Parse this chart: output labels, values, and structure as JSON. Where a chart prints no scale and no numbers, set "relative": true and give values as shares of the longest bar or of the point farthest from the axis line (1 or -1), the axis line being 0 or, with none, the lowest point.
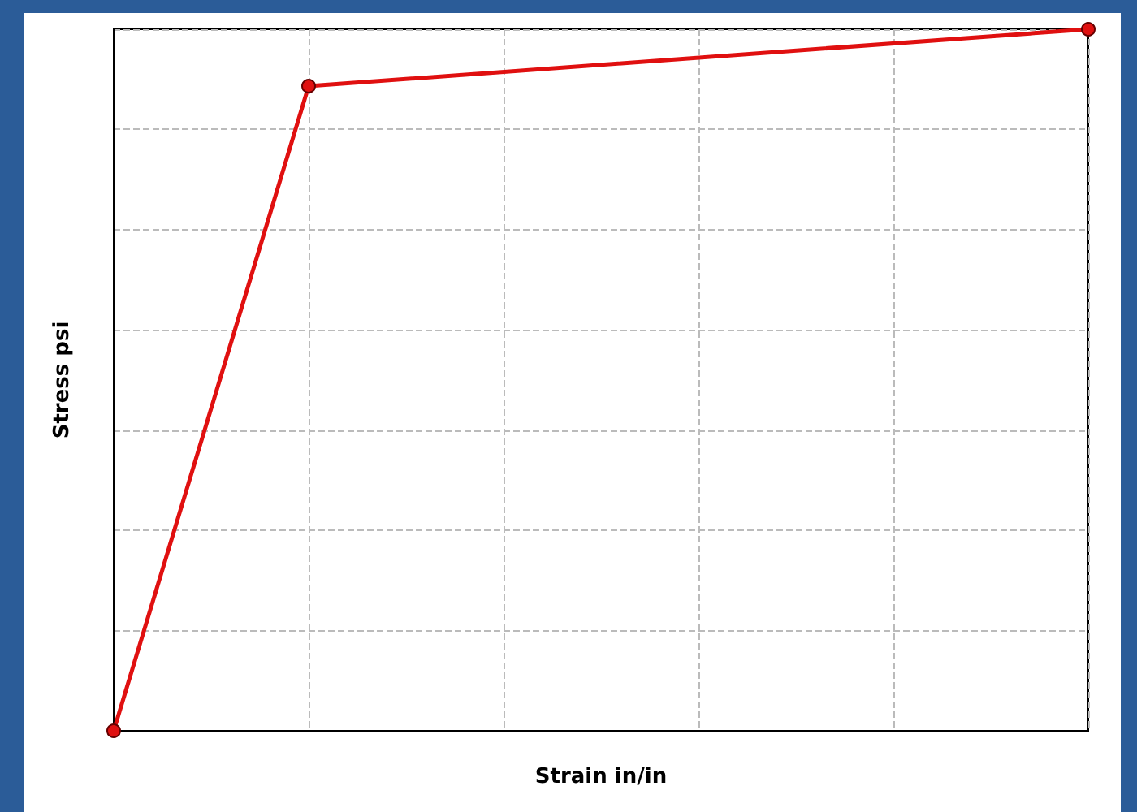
{
  "chart_data": {
    "type": "line",
    "xlabel": "Strain in/in",
    "ylabel": "Stress psi",
    "relative": true,
    "categories": [
      null,
      null,
      null,
      null,
      null,
      null
    ],
    "series": [
      {
        "color": "#e01010",
        "values": [
          0,
          0.919,
          null,
          null,
          null,
          1
        ]
      }
    ],
    "marker": "circle",
    "line_style": "solid",
    "grid": true
  }
}
